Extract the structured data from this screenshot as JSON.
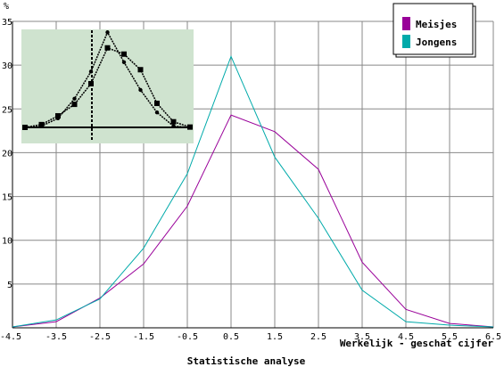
{
  "chart_data": {
    "type": "line",
    "title": "",
    "xlabel": "Werkelijk - geschat cijfer",
    "ylabel": "%",
    "footer": "Statistische analyse",
    "x": [
      -4.5,
      -3.5,
      -2.5,
      -1.5,
      -0.5,
      0.5,
      1.5,
      2.5,
      3.5,
      4.5,
      5.5,
      6.5
    ],
    "x_tick_labels": [
      "-4.5",
      "-3.5",
      "-2.5",
      "-1.5",
      "-0.5",
      "0.5",
      "1.5",
      "2.5",
      "3.5",
      "4.5",
      "5.5",
      "6.5"
    ],
    "xlim": [
      -4.5,
      6.5
    ],
    "ylim": [
      0,
      35
    ],
    "y_ticks": [
      5,
      10,
      15,
      20,
      25,
      30,
      35
    ],
    "y_tick_labels": [
      "5",
      "10",
      "15",
      "20",
      "25",
      "30",
      "35"
    ],
    "grid": true,
    "legend_position": "top-right",
    "series": [
      {
        "name": "Meisjes",
        "color": "#990099",
        "values": [
          0.1,
          0.7,
          3.4,
          7.3,
          13.9,
          24.3,
          22.4,
          18.1,
          7.5,
          2.1,
          0.5,
          0.1
        ]
      },
      {
        "name": "Jongens",
        "color": "#00aaaa",
        "values": [
          0.1,
          0.9,
          3.3,
          9.1,
          17.6,
          31.0,
          19.5,
          12.5,
          4.3,
          0.7,
          0.3,
          0.1
        ]
      }
    ],
    "inset": {
      "background": "#cfe3cf",
      "series": [
        {
          "marker": "circle",
          "values": [
            0.0,
            0.4,
            2.9,
            9.2,
            17.9,
            30.5,
            20.9,
            12.0,
            4.8,
            0.4,
            0.0
          ]
        },
        {
          "marker": "square",
          "values": [
            0.0,
            0.9,
            3.7,
            7.4,
            14.0,
            25.5,
            23.5,
            18.5,
            7.7,
            1.8,
            0.1
          ]
        }
      ]
    }
  }
}
